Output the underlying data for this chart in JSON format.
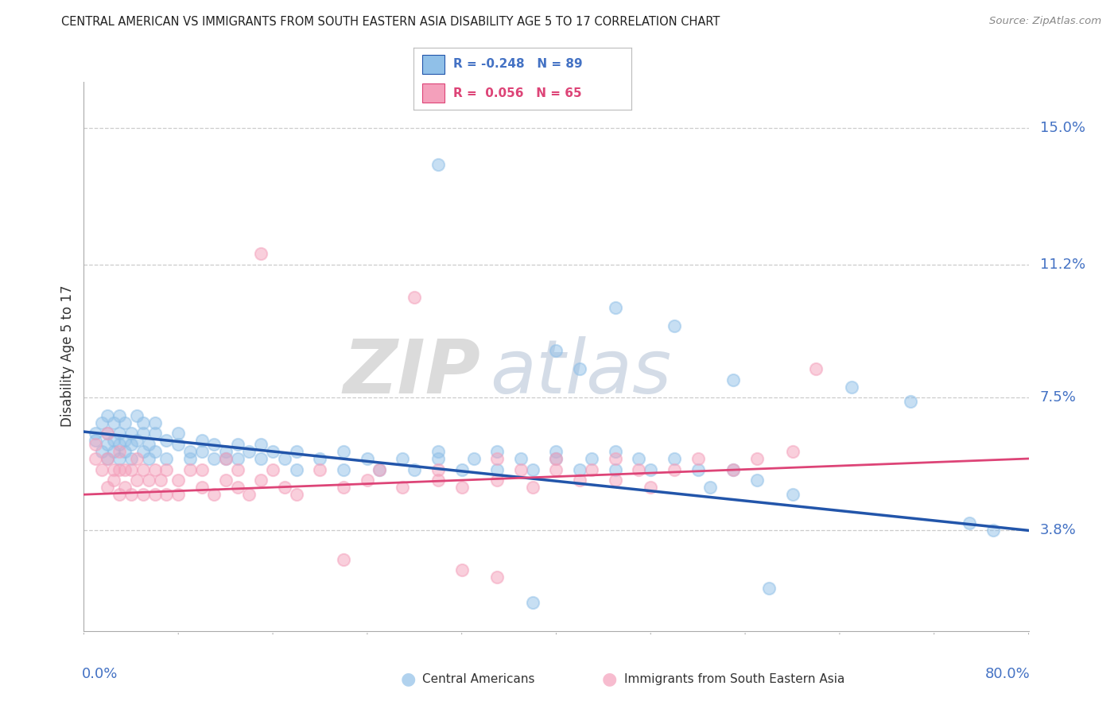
{
  "title": "CENTRAL AMERICAN VS IMMIGRANTS FROM SOUTH EASTERN ASIA DISABILITY AGE 5 TO 17 CORRELATION CHART",
  "source": "Source: ZipAtlas.com",
  "ylabel": "Disability Age 5 to 17",
  "yticks": [
    0.038,
    0.075,
    0.112,
    0.15
  ],
  "ytick_labels": [
    "3.8%",
    "7.5%",
    "11.2%",
    "15.0%"
  ],
  "xmin": 0.0,
  "xmax": 0.8,
  "ymin": 0.01,
  "ymax": 0.163,
  "blue_R": -0.248,
  "blue_N": 89,
  "pink_R": 0.056,
  "pink_N": 65,
  "blue_color": "#90C0E8",
  "pink_color": "#F4A0BB",
  "blue_line_color": "#2255AA",
  "pink_line_color": "#DD4477",
  "blue_trend_x": [
    0.0,
    0.8
  ],
  "blue_trend_y": [
    0.0655,
    0.038
  ],
  "pink_trend_x": [
    0.0,
    0.8
  ],
  "pink_trend_y": [
    0.048,
    0.058
  ],
  "blue_scatter": [
    [
      0.01,
      0.063
    ],
    [
      0.01,
      0.065
    ],
    [
      0.015,
      0.06
    ],
    [
      0.015,
      0.068
    ],
    [
      0.02,
      0.062
    ],
    [
      0.02,
      0.058
    ],
    [
      0.02,
      0.07
    ],
    [
      0.02,
      0.065
    ],
    [
      0.025,
      0.063
    ],
    [
      0.025,
      0.06
    ],
    [
      0.025,
      0.068
    ],
    [
      0.03,
      0.062
    ],
    [
      0.03,
      0.065
    ],
    [
      0.03,
      0.058
    ],
    [
      0.03,
      0.07
    ],
    [
      0.035,
      0.063
    ],
    [
      0.035,
      0.06
    ],
    [
      0.035,
      0.068
    ],
    [
      0.04,
      0.065
    ],
    [
      0.04,
      0.062
    ],
    [
      0.04,
      0.058
    ],
    [
      0.045,
      0.063
    ],
    [
      0.045,
      0.07
    ],
    [
      0.05,
      0.06
    ],
    [
      0.05,
      0.065
    ],
    [
      0.05,
      0.068
    ],
    [
      0.055,
      0.062
    ],
    [
      0.055,
      0.058
    ],
    [
      0.06,
      0.065
    ],
    [
      0.06,
      0.06
    ],
    [
      0.06,
      0.068
    ],
    [
      0.07,
      0.063
    ],
    [
      0.07,
      0.058
    ],
    [
      0.08,
      0.062
    ],
    [
      0.08,
      0.065
    ],
    [
      0.09,
      0.06
    ],
    [
      0.09,
      0.058
    ],
    [
      0.1,
      0.063
    ],
    [
      0.1,
      0.06
    ],
    [
      0.11,
      0.058
    ],
    [
      0.11,
      0.062
    ],
    [
      0.12,
      0.06
    ],
    [
      0.12,
      0.058
    ],
    [
      0.13,
      0.062
    ],
    [
      0.13,
      0.058
    ],
    [
      0.14,
      0.06
    ],
    [
      0.15,
      0.058
    ],
    [
      0.15,
      0.062
    ],
    [
      0.16,
      0.06
    ],
    [
      0.17,
      0.058
    ],
    [
      0.18,
      0.06
    ],
    [
      0.18,
      0.055
    ],
    [
      0.2,
      0.058
    ],
    [
      0.22,
      0.055
    ],
    [
      0.22,
      0.06
    ],
    [
      0.24,
      0.058
    ],
    [
      0.25,
      0.055
    ],
    [
      0.27,
      0.058
    ],
    [
      0.28,
      0.055
    ],
    [
      0.3,
      0.058
    ],
    [
      0.3,
      0.06
    ],
    [
      0.32,
      0.055
    ],
    [
      0.33,
      0.058
    ],
    [
      0.35,
      0.055
    ],
    [
      0.35,
      0.06
    ],
    [
      0.37,
      0.058
    ],
    [
      0.38,
      0.055
    ],
    [
      0.4,
      0.058
    ],
    [
      0.4,
      0.06
    ],
    [
      0.42,
      0.055
    ],
    [
      0.43,
      0.058
    ],
    [
      0.45,
      0.055
    ],
    [
      0.45,
      0.06
    ],
    [
      0.47,
      0.058
    ],
    [
      0.48,
      0.055
    ],
    [
      0.5,
      0.058
    ],
    [
      0.52,
      0.055
    ],
    [
      0.53,
      0.05
    ],
    [
      0.55,
      0.055
    ],
    [
      0.57,
      0.052
    ],
    [
      0.6,
      0.048
    ],
    [
      0.3,
      0.14
    ],
    [
      0.45,
      0.1
    ],
    [
      0.4,
      0.088
    ],
    [
      0.42,
      0.083
    ],
    [
      0.5,
      0.095
    ],
    [
      0.55,
      0.08
    ],
    [
      0.65,
      0.078
    ],
    [
      0.7,
      0.074
    ],
    [
      0.75,
      0.04
    ],
    [
      0.77,
      0.038
    ],
    [
      0.38,
      0.018
    ],
    [
      0.58,
      0.022
    ]
  ],
  "pink_scatter": [
    [
      0.01,
      0.058
    ],
    [
      0.01,
      0.062
    ],
    [
      0.015,
      0.055
    ],
    [
      0.02,
      0.05
    ],
    [
      0.02,
      0.058
    ],
    [
      0.02,
      0.065
    ],
    [
      0.025,
      0.052
    ],
    [
      0.025,
      0.055
    ],
    [
      0.03,
      0.048
    ],
    [
      0.03,
      0.055
    ],
    [
      0.03,
      0.06
    ],
    [
      0.035,
      0.05
    ],
    [
      0.035,
      0.055
    ],
    [
      0.04,
      0.048
    ],
    [
      0.04,
      0.055
    ],
    [
      0.045,
      0.052
    ],
    [
      0.045,
      0.058
    ],
    [
      0.05,
      0.048
    ],
    [
      0.05,
      0.055
    ],
    [
      0.055,
      0.052
    ],
    [
      0.06,
      0.048
    ],
    [
      0.06,
      0.055
    ],
    [
      0.065,
      0.052
    ],
    [
      0.07,
      0.048
    ],
    [
      0.07,
      0.055
    ],
    [
      0.08,
      0.052
    ],
    [
      0.08,
      0.048
    ],
    [
      0.09,
      0.055
    ],
    [
      0.1,
      0.05
    ],
    [
      0.1,
      0.055
    ],
    [
      0.11,
      0.048
    ],
    [
      0.12,
      0.052
    ],
    [
      0.12,
      0.058
    ],
    [
      0.13,
      0.05
    ],
    [
      0.13,
      0.055
    ],
    [
      0.14,
      0.048
    ],
    [
      0.15,
      0.052
    ],
    [
      0.16,
      0.055
    ],
    [
      0.17,
      0.05
    ],
    [
      0.18,
      0.048
    ],
    [
      0.2,
      0.055
    ],
    [
      0.22,
      0.05
    ],
    [
      0.24,
      0.052
    ],
    [
      0.25,
      0.055
    ],
    [
      0.27,
      0.05
    ],
    [
      0.3,
      0.052
    ],
    [
      0.3,
      0.055
    ],
    [
      0.32,
      0.05
    ],
    [
      0.35,
      0.052
    ],
    [
      0.35,
      0.058
    ],
    [
      0.37,
      0.055
    ],
    [
      0.38,
      0.05
    ],
    [
      0.4,
      0.055
    ],
    [
      0.4,
      0.058
    ],
    [
      0.42,
      0.052
    ],
    [
      0.43,
      0.055
    ],
    [
      0.45,
      0.058
    ],
    [
      0.45,
      0.052
    ],
    [
      0.47,
      0.055
    ],
    [
      0.48,
      0.05
    ],
    [
      0.5,
      0.055
    ],
    [
      0.52,
      0.058
    ],
    [
      0.55,
      0.055
    ],
    [
      0.57,
      0.058
    ],
    [
      0.6,
      0.06
    ],
    [
      0.15,
      0.115
    ],
    [
      0.28,
      0.103
    ],
    [
      0.62,
      0.083
    ],
    [
      0.22,
      0.03
    ],
    [
      0.32,
      0.027
    ],
    [
      0.35,
      0.025
    ]
  ],
  "watermark_zip": "ZIP",
  "watermark_atlas": "atlas",
  "background_color": "#FFFFFF",
  "grid_color": "#CCCCCC",
  "title_color": "#222222",
  "tick_color": "#4472C4",
  "legend_text_color_blue": "#4472C4",
  "legend_text_color_pink": "#DD4477"
}
